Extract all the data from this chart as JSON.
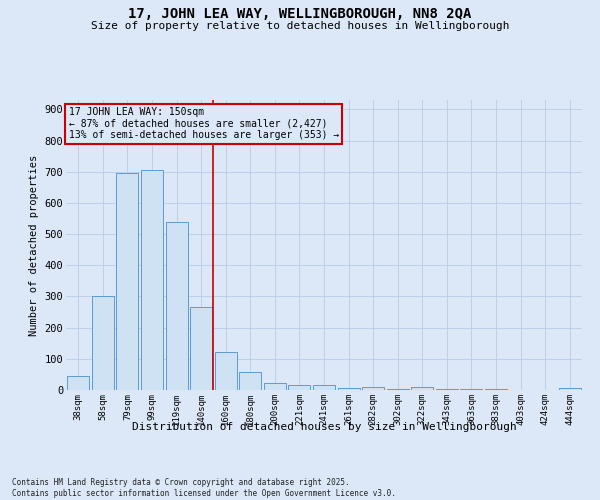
{
  "title": "17, JOHN LEA WAY, WELLINGBOROUGH, NN8 2QA",
  "subtitle": "Size of property relative to detached houses in Wellingborough",
  "xlabel": "Distribution of detached houses by size in Wellingborough",
  "ylabel": "Number of detached properties",
  "footer_line1": "Contains HM Land Registry data © Crown copyright and database right 2025.",
  "footer_line2": "Contains public sector information licensed under the Open Government Licence v3.0.",
  "annotation_line1": "17 JOHN LEA WAY: 150sqm",
  "annotation_line2": "← 87% of detached houses are smaller (2,427)",
  "annotation_line3": "13% of semi-detached houses are larger (353) →",
  "bar_edge_color": "#5b9bd5",
  "bar_face_color": "#cfe2f3",
  "vline_color": "#cc0000",
  "annotation_box_color": "#cc0000",
  "background_color": "#dce8f8",
  "grid_color": "#b8cce4",
  "categories": [
    "38sqm",
    "58sqm",
    "79sqm",
    "99sqm",
    "119sqm",
    "140sqm",
    "160sqm",
    "180sqm",
    "200sqm",
    "221sqm",
    "241sqm",
    "261sqm",
    "282sqm",
    "302sqm",
    "322sqm",
    "343sqm",
    "363sqm",
    "383sqm",
    "403sqm",
    "424sqm",
    "444sqm"
  ],
  "values": [
    45,
    300,
    695,
    706,
    540,
    265,
    122,
    57,
    22,
    15,
    17,
    7,
    10,
    4,
    10,
    3,
    3,
    2,
    1,
    1,
    8
  ],
  "vline_position": 5.5,
  "ylim": [
    0,
    930
  ],
  "yticks": [
    0,
    100,
    200,
    300,
    400,
    500,
    600,
    700,
    800,
    900
  ]
}
